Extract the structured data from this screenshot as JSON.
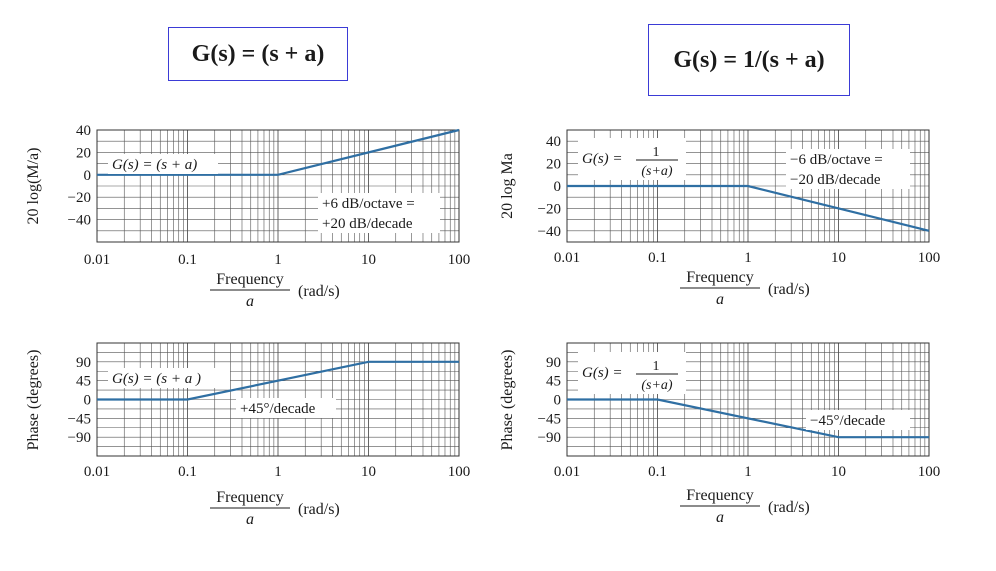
{
  "titles": {
    "left": "G(s) = (s + a)",
    "right": "G(s) = 1/(s + a)"
  },
  "colors": {
    "curve": "#2f6fa3",
    "grid": "#555555",
    "title_border": "#3b3bd6"
  },
  "chart_data": [
    {
      "type": "line",
      "id": "mag-left",
      "x_scale": "log",
      "xlim": [
        0.01,
        100
      ],
      "ylim": [
        -60,
        40
      ],
      "x_ticks": [
        "0.01",
        "0.1",
        "1",
        "10",
        "100"
      ],
      "y_ticks": [
        "40",
        "20",
        "0",
        "−20",
        "−40"
      ],
      "y_tick_values": [
        40,
        20,
        0,
        -20,
        -40
      ],
      "ylabel": "20 log(M/a)",
      "xlabel_num": "Frequency",
      "xlabel_den": "a",
      "xlabel_unit": "(rad/s)",
      "series": [
        {
          "x": [
            0.01,
            1,
            100
          ],
          "y": [
            0,
            0,
            40
          ]
        }
      ],
      "annotations": {
        "func": "G(s) = (s + a)",
        "slope1": "+6 dB/octave =",
        "slope2": "+20 dB/decade"
      }
    },
    {
      "type": "line",
      "id": "mag-right",
      "x_scale": "log",
      "xlim": [
        0.01,
        100
      ],
      "ylim": [
        -50,
        50
      ],
      "x_ticks": [
        "0.01",
        "0.1",
        "1",
        "10",
        "100"
      ],
      "y_ticks": [
        "40",
        "20",
        "0",
        "−20",
        "−40"
      ],
      "y_tick_values": [
        40,
        20,
        0,
        -20,
        -40
      ],
      "ylabel": "20 log Ma",
      "xlabel_num": "Frequency",
      "xlabel_den": "a",
      "xlabel_unit": "(rad/s)",
      "series": [
        {
          "x": [
            0.01,
            1,
            100
          ],
          "y": [
            0,
            0,
            -40
          ]
        }
      ],
      "annotations": {
        "func_lhs": "G(s) =",
        "func_num": "1",
        "func_den": "(s+a)",
        "slope1": "−6 dB/octave =",
        "slope2": "−20 dB/decade"
      }
    },
    {
      "type": "line",
      "id": "phase-left",
      "x_scale": "log",
      "xlim": [
        0.01,
        100
      ],
      "ylim": [
        -135,
        135
      ],
      "x_ticks": [
        "0.01",
        "0.1",
        "1",
        "10",
        "100"
      ],
      "y_ticks": [
        "90",
        "45",
        "0",
        "−45",
        "−90"
      ],
      "y_tick_values": [
        90,
        45,
        0,
        -45,
        -90
      ],
      "ylabel": "Phase (degrees)",
      "xlabel_num": "Frequency",
      "xlabel_den": "a",
      "xlabel_unit": "(rad/s)",
      "series": [
        {
          "x": [
            0.01,
            0.1,
            10,
            100
          ],
          "y": [
            0,
            0,
            90,
            90
          ]
        }
      ],
      "annotations": {
        "func": "G(s) = (s + a )",
        "slope1": "+45°/decade"
      }
    },
    {
      "type": "line",
      "id": "phase-right",
      "x_scale": "log",
      "xlim": [
        0.01,
        100
      ],
      "ylim": [
        -135,
        135
      ],
      "x_ticks": [
        "0.01",
        "0.1",
        "1",
        "10",
        "100"
      ],
      "y_ticks": [
        "90",
        "45",
        "0",
        "−45",
        "−90"
      ],
      "y_tick_values": [
        90,
        45,
        0,
        -45,
        -90
      ],
      "ylabel": "Phase (degrees)",
      "xlabel_num": "Frequency",
      "xlabel_den": "a",
      "xlabel_unit": "(rad/s)",
      "series": [
        {
          "x": [
            0.01,
            0.1,
            10,
            100
          ],
          "y": [
            0,
            0,
            -90,
            -90
          ]
        }
      ],
      "annotations": {
        "func_lhs": "G(s) =",
        "func_num": "1",
        "func_den": "(s+a)",
        "slope1": "−45°/decade"
      }
    }
  ]
}
